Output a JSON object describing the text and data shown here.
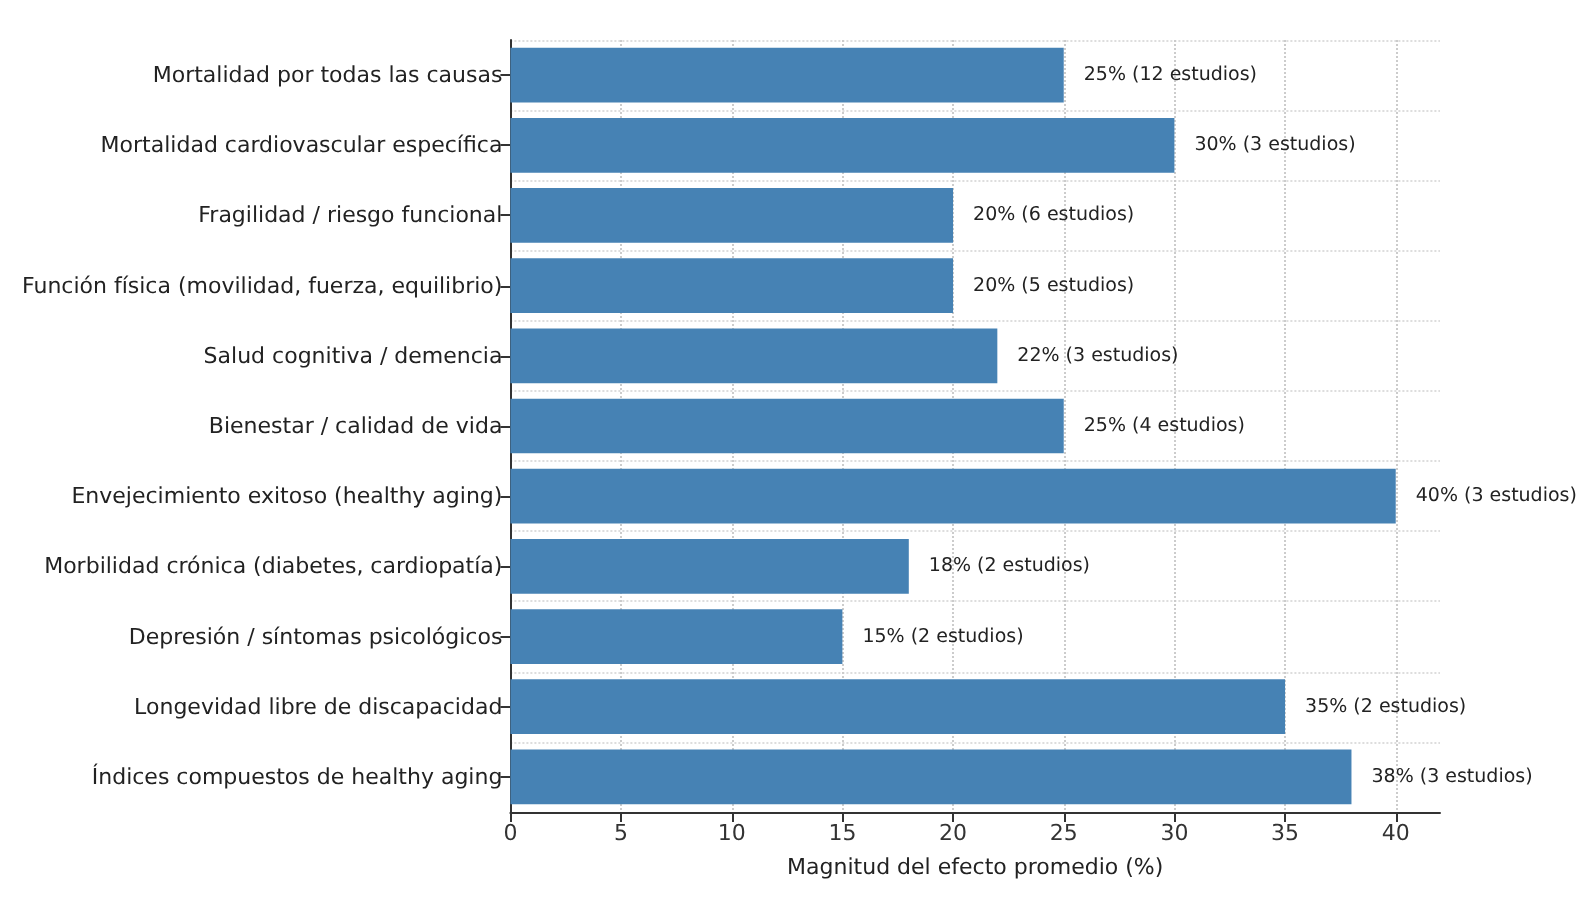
{
  "chart_data": {
    "type": "bar",
    "orientation": "horizontal",
    "xlabel": "Magnitud del efecto promedio (%)",
    "categories": [
      "Mortalidad por todas las causas",
      "Mortalidad cardiovascular específica",
      "Fragilidad / riesgo funcional",
      "Función física (movilidad, fuerza, equilibrio)",
      "Salud cognitiva / demencia",
      "Bienestar / calidad de vida",
      "Envejecimiento exitoso (healthy aging)",
      "Morbilidad crónica (diabetes, cardiopatía)",
      "Depresión / síntomas psicológicos",
      "Longevidad libre de discapacidad",
      "Índices compuestos de healthy aging"
    ],
    "values": [
      25,
      30,
      20,
      20,
      22,
      25,
      40,
      18,
      15,
      35,
      38
    ],
    "value_labels": [
      "25% (12 estudios)",
      "30% (3 estudios)",
      "20% (6 estudios)",
      "20% (5 estudios)",
      "22% (3 estudios)",
      "25% (4 estudios)",
      "40% (3 estudios)",
      "18% (2 estudios)",
      "15% (2 estudios)",
      "35% (2 estudios)",
      "38% (3 estudios)"
    ],
    "color": "#4682b4",
    "xlim": [
      0,
      42
    ],
    "xticks": [
      0,
      5,
      10,
      15,
      20,
      25,
      30,
      35,
      40
    ],
    "grid": true
  }
}
